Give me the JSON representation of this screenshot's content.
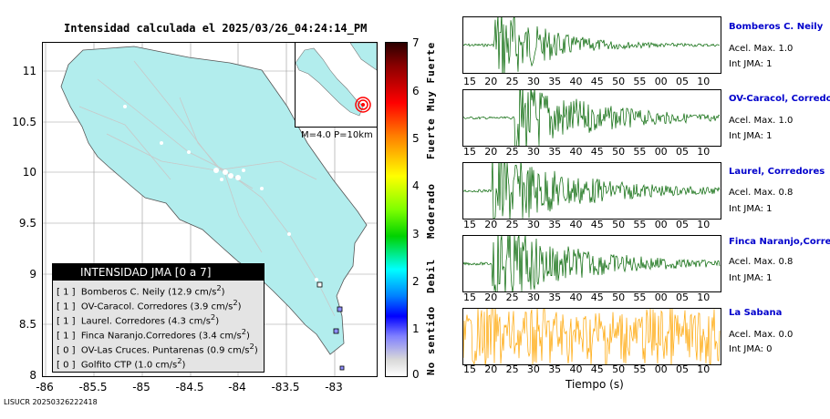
{
  "map": {
    "title": "Intensidad calculada el 2025/03/26_04:24:14_PM",
    "y_ticks": [
      "11",
      "10.5",
      "10",
      "9.5",
      "9",
      "8.5",
      "8"
    ],
    "x_ticks": [
      "-86",
      "-85.5",
      "-85",
      "-84.5",
      "-84",
      "-83.5",
      "-83"
    ],
    "inset_label": "M=4.0 P=10km"
  },
  "legend": {
    "title": "INTENSIDAD JMA [0 a 7]",
    "items": [
      {
        "int": "[ 1 ]",
        "station": "Bomberos C. Neily",
        "value": "(12.9 cm/s",
        "sup": "2",
        "close": ")"
      },
      {
        "int": "[ 1 ]",
        "station": "OV-Caracol. Corredores",
        "value": "(3.9 cm/s",
        "sup": "2",
        "close": ")"
      },
      {
        "int": "[ 1 ]",
        "station": "Laurel. Corredores",
        "value": "(4.3 cm/s",
        "sup": "2",
        "close": ")"
      },
      {
        "int": "[ 1 ]",
        "station": "Finca Naranjo.Corredores",
        "value": "(3.4 cm/s",
        "sup": "2",
        "close": ")"
      },
      {
        "int": "[ 0 ]",
        "station": "OV-Las Cruces. Puntarenas",
        "value": "(0.9 cm/s",
        "sup": "2",
        "close": ")"
      },
      {
        "int": "[ 0 ]",
        "station": "Golfito CTP",
        "value": "(1.0 cm/s",
        "sup": "2",
        "close": ")"
      }
    ]
  },
  "colorbar": {
    "ticks": [
      "7",
      "6",
      "5",
      "4",
      "3",
      "2",
      "1",
      "0"
    ],
    "words": [
      "Muy Fuerte",
      "Fuerte",
      "Moderado",
      "Debil",
      "No sentido"
    ]
  },
  "footer_id": "LISUCR 20250326222418",
  "time_ticks": [
    "15",
    "20",
    "25",
    "30",
    "35",
    "40",
    "45",
    "50",
    "55",
    "00",
    "05",
    "10"
  ],
  "time_label": "Tiempo (s)",
  "stations": [
    {
      "name": "Bomberos C. Neily",
      "acel": "Acel. Max. 1.0",
      "int": "Int JMA: 1",
      "color": "#006400",
      "onset": 0.12,
      "amp": 0.95,
      "decay": 0.18
    },
    {
      "name": "OV-Caracol, Corredores",
      "acel": "Acel. Max. 1.0",
      "int": "Int JMA: 1",
      "color": "#006400",
      "onset": 0.2,
      "amp": 0.85,
      "decay": 0.28
    },
    {
      "name": "Laurel, Corredores",
      "acel": "Acel. Max. 0.8",
      "int": "Int JMA: 1",
      "color": "#006400",
      "onset": 0.11,
      "amp": 0.9,
      "decay": 0.3
    },
    {
      "name": "Finca Naranjo,Corredores",
      "acel": "Acel. Max. 0.8",
      "int": "Int JMA: 1",
      "color": "#006400",
      "onset": 0.11,
      "amp": 0.9,
      "decay": 0.3
    },
    {
      "name": "La Sabana",
      "acel": "Acel. Max. 0.0",
      "int": "Int JMA: 0",
      "color": "#ffa500",
      "onset": 0.0,
      "amp": 0.65,
      "decay": 0
    }
  ]
}
